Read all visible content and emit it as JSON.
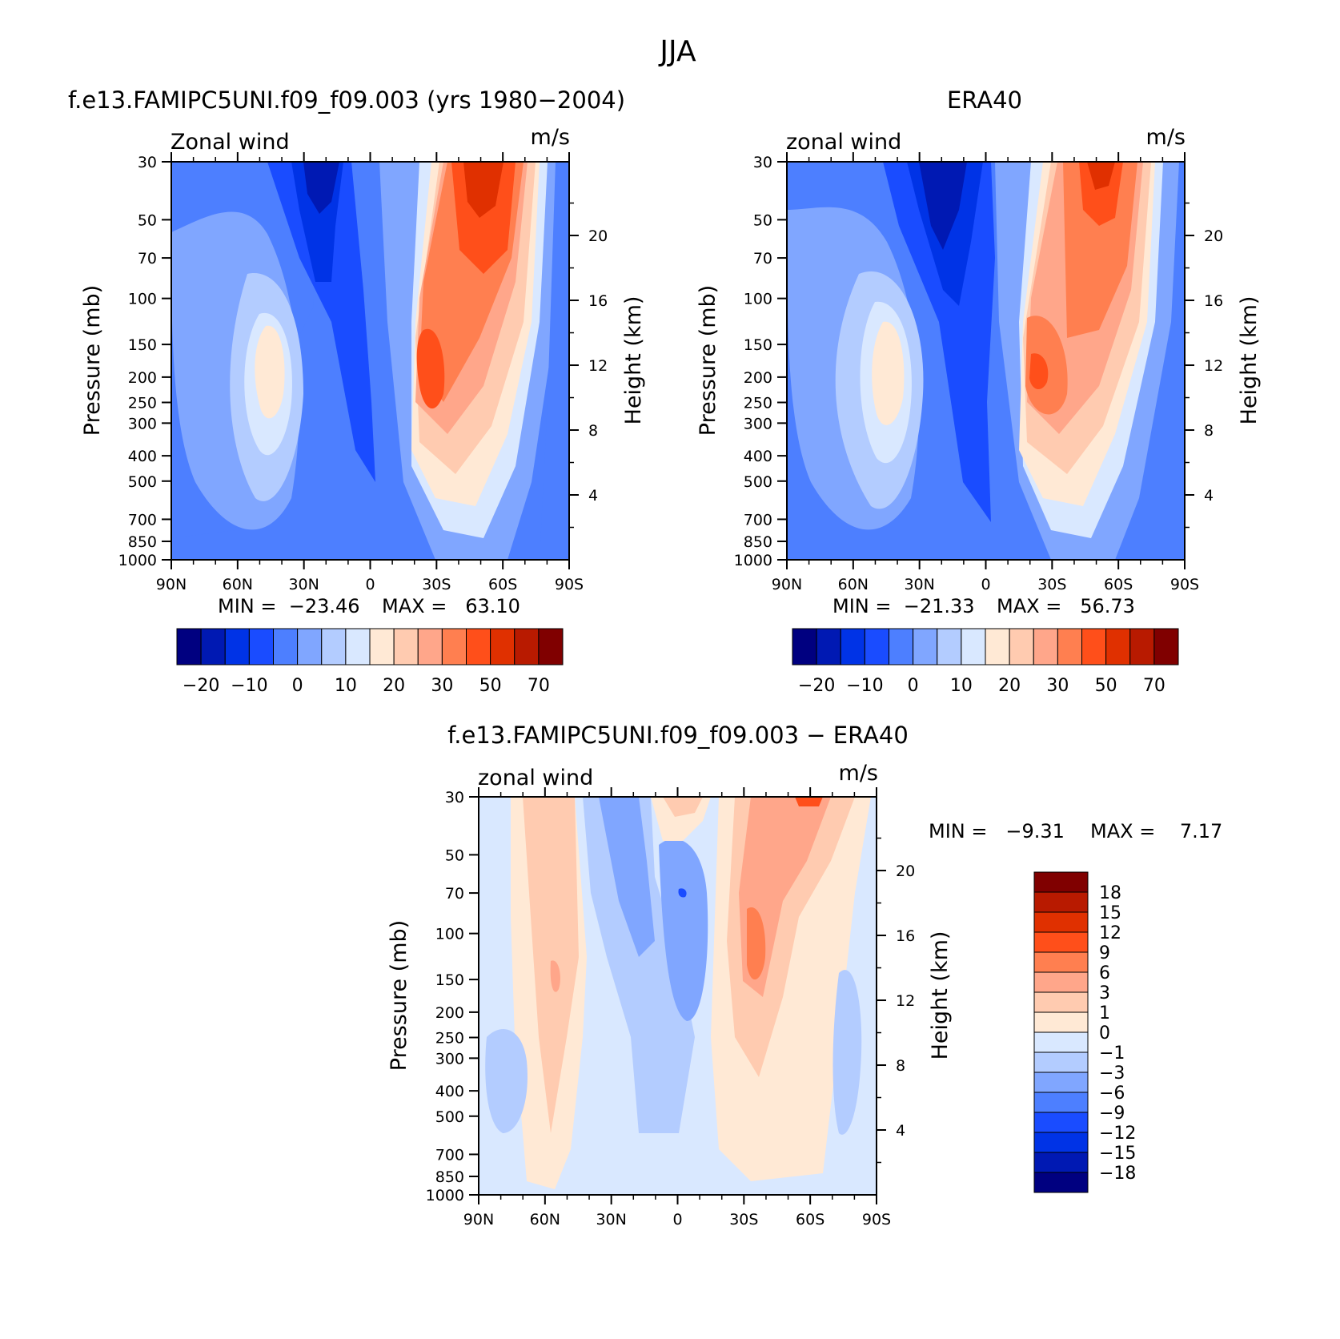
{
  "figure": {
    "title": "JJA"
  },
  "colors": {
    "main_scale": [
      "#000080",
      "#0019b3",
      "#0033e6",
      "#1a4cff",
      "#4d7fff",
      "#80a6ff",
      "#b3ccff",
      "#d9e8ff",
      "#ffe9d5",
      "#ffcbb0",
      "#ffa68a",
      "#ff7f50",
      "#ff4f1a",
      "#e03000",
      "#b81a00",
      "#800000"
    ],
    "diff_scale": [
      "#000080",
      "#0019b3",
      "#0033e6",
      "#1a4cff",
      "#4d7fff",
      "#80a6ff",
      "#b3ccff",
      "#d9e8ff",
      "#ffe9d5",
      "#ffcbb0",
      "#ffa68a",
      "#ff7f50",
      "#ff4f1a",
      "#e03000",
      "#b81a00",
      "#800000"
    ]
  },
  "chart_data": [
    {
      "type": "heatmap",
      "title": "f.e13.FAMIPC5UNI.f09_f09.003 (yrs 1980-2004)",
      "field_label": "Zonal wind",
      "units": "m/s",
      "ylabel": "Pressure (mb)",
      "y2label": "Height (km)",
      "x_ticks": [
        "90N",
        "60N",
        "30N",
        "0",
        "30S",
        "60S",
        "90S"
      ],
      "x_values": [
        -90,
        -60,
        -30,
        0,
        30,
        60,
        90
      ],
      "y_ticks": [
        30,
        50,
        70,
        100,
        150,
        200,
        250,
        300,
        400,
        500,
        700,
        850,
        1000
      ],
      "y2_ticks": [
        20,
        16,
        12,
        8,
        4
      ],
      "ylim": [
        1000,
        30
      ],
      "min_text": "MIN =  -23.46",
      "max_text": "MAX =   63.10",
      "colorbar_labels": [
        "-20",
        "-10",
        "0",
        "10",
        "20",
        "30",
        "50",
        "70"
      ],
      "features": [
        {
          "lat": -18,
          "p": 40,
          "value": -23.5
        },
        {
          "lat": -40,
          "p": 200,
          "value": 21
        },
        {
          "lat": 30,
          "p": 190,
          "value": 53
        },
        {
          "lat": 57,
          "p": 35,
          "value": 63.1
        },
        {
          "lat": 45,
          "p": 600,
          "value": 12
        }
      ]
    },
    {
      "type": "heatmap",
      "title": "ERA40",
      "field_label": "zonal wind",
      "units": "m/s",
      "ylabel": "Pressure (mb)",
      "y2label": "Height (km)",
      "x_ticks": [
        "90N",
        "60N",
        "30N",
        "0",
        "30S",
        "60S",
        "90S"
      ],
      "x_values": [
        -90,
        -60,
        -30,
        0,
        30,
        60,
        90
      ],
      "y_ticks": [
        30,
        50,
        70,
        100,
        150,
        200,
        250,
        300,
        400,
        500,
        700,
        850,
        1000
      ],
      "y2_ticks": [
        20,
        16,
        12,
        8,
        4
      ],
      "ylim": [
        1000,
        30
      ],
      "min_text": "MIN =  -21.33",
      "max_text": "MAX =   56.73",
      "colorbar_labels": [
        "-20",
        "-10",
        "0",
        "10",
        "20",
        "30",
        "50",
        "70"
      ],
      "features": [
        {
          "lat": -15,
          "p": 40,
          "value": -21.3
        },
        {
          "lat": -43,
          "p": 200,
          "value": 21
        },
        {
          "lat": 30,
          "p": 200,
          "value": 50
        },
        {
          "lat": 60,
          "p": 35,
          "value": 56.7
        },
        {
          "lat": 45,
          "p": 600,
          "value": 11
        }
      ]
    },
    {
      "type": "heatmap",
      "title": "f.e13.FAMIPC5UNI.f09_f09.003 - ERA40",
      "field_label": "zonal wind",
      "units": "m/s",
      "ylabel": "Pressure (mb)",
      "y2label": "Height (km)",
      "x_ticks": [
        "90N",
        "60N",
        "30N",
        "0",
        "30S",
        "60S",
        "90S"
      ],
      "x_values": [
        -90,
        -60,
        -30,
        0,
        30,
        60,
        90
      ],
      "y_ticks": [
        30,
        50,
        70,
        100,
        150,
        200,
        250,
        300,
        400,
        500,
        700,
        850,
        1000
      ],
      "y2_ticks": [
        20,
        16,
        12,
        8,
        4
      ],
      "ylim": [
        1000,
        30
      ],
      "min_text": "MIN =   -9.31",
      "max_text": "MAX =    7.17",
      "colorbar_labels": [
        "18",
        "15",
        "12",
        "9",
        "6",
        "3",
        "1",
        "0",
        "-1",
        "-3",
        "-6",
        "-9",
        "-12",
        "-15",
        "-18"
      ],
      "features": [
        {
          "lat": -55,
          "p": 200,
          "value": 4
        },
        {
          "lat": 2,
          "p": 70,
          "value": -9.31
        },
        {
          "lat": 35,
          "p": 120,
          "value": 7.17
        },
        {
          "lat": 60,
          "p": 30,
          "value": 7
        },
        {
          "lat": -85,
          "p": 350,
          "value": -3
        }
      ]
    }
  ]
}
